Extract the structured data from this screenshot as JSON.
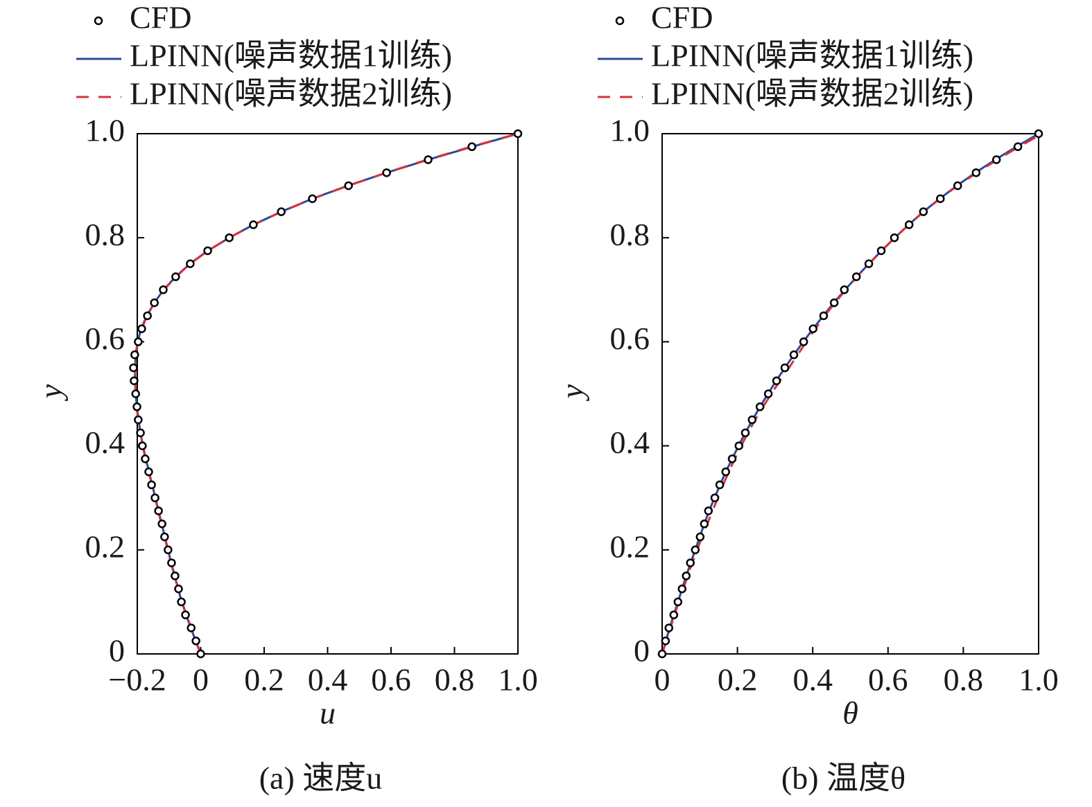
{
  "chart_data": [
    {
      "type": "line",
      "caption": "(a) 速度u",
      "xlabel": "u",
      "ylabel": "y",
      "xlim": [
        -0.2,
        1
      ],
      "ylim": [
        0,
        1
      ],
      "xticks": [
        {
          "value": -0.2,
          "label": "−0.2"
        },
        0,
        0.2,
        0.4,
        0.6,
        0.8,
        {
          "value": 1,
          "label": "1.0"
        }
      ],
      "yticks": [
        0,
        0.2,
        0.4,
        0.6,
        0.8,
        {
          "value": 1,
          "label": "1.0"
        }
      ],
      "y": [
        0,
        0.025,
        0.05,
        0.075,
        0.1,
        0.125,
        0.15,
        0.175,
        0.2,
        0.225,
        0.25,
        0.275,
        0.3,
        0.325,
        0.35,
        0.375,
        0.4,
        0.425,
        0.45,
        0.475,
        0.5,
        0.525,
        0.55,
        0.575,
        0.6,
        0.625,
        0.65,
        0.675,
        0.7,
        0.725,
        0.75,
        0.775,
        0.8,
        0.825,
        0.85,
        0.875,
        0.9,
        0.925,
        0.95,
        0.975,
        1
      ],
      "series": [
        {
          "name": "CFD",
          "color": "#000000",
          "style": "marker",
          "x": [
            0,
            -0.015,
            -0.03,
            -0.048,
            -0.061,
            -0.07,
            -0.081,
            -0.092,
            -0.103,
            -0.114,
            -0.122,
            -0.133,
            -0.144,
            -0.155,
            -0.164,
            -0.175,
            -0.184,
            -0.19,
            -0.197,
            -0.201,
            -0.205,
            -0.21,
            -0.212,
            -0.208,
            -0.197,
            -0.186,
            -0.168,
            -0.146,
            -0.118,
            -0.079,
            -0.033,
            0.022,
            0.09,
            0.166,
            0.254,
            0.352,
            0.466,
            0.586,
            0.717,
            0.855,
            1
          ]
        },
        {
          "name": "LPINN(噪声数据1训练)",
          "color": "#2b4a9c",
          "style": "solid",
          "x": [
            0,
            -0.016,
            -0.031,
            -0.046,
            -0.06,
            -0.071,
            -0.082,
            -0.093,
            -0.103,
            -0.113,
            -0.123,
            -0.133,
            -0.143,
            -0.153,
            -0.163,
            -0.173,
            -0.182,
            -0.19,
            -0.196,
            -0.201,
            -0.205,
            -0.207,
            -0.207,
            -0.205,
            -0.199,
            -0.188,
            -0.17,
            -0.146,
            -0.117,
            -0.079,
            -0.034,
            0.022,
            0.09,
            0.166,
            0.254,
            0.352,
            0.464,
            0.586,
            0.717,
            0.856,
            1
          ]
        },
        {
          "name": "LPINN(噪声数据2训练)",
          "color": "#d9303a",
          "style": "dashed",
          "x": [
            0,
            -0.015,
            -0.03,
            -0.045,
            -0.059,
            -0.071,
            -0.083,
            -0.094,
            -0.104,
            -0.114,
            -0.124,
            -0.134,
            -0.144,
            -0.154,
            -0.164,
            -0.174,
            -0.183,
            -0.19,
            -0.197,
            -0.202,
            -0.205,
            -0.207,
            -0.207,
            -0.204,
            -0.198,
            -0.186,
            -0.169,
            -0.146,
            -0.116,
            -0.078,
            -0.033,
            0.023,
            0.09,
            0.167,
            0.255,
            0.353,
            0.465,
            0.585,
            0.714,
            0.852,
            1
          ]
        }
      ]
    },
    {
      "type": "line",
      "caption": "(b) 温度θ",
      "xlabel": "θ",
      "ylabel": "y",
      "xlim": [
        0,
        1
      ],
      "ylim": [
        0,
        1
      ],
      "xticks": [
        0,
        0.2,
        0.4,
        0.6,
        0.8,
        {
          "value": 1,
          "label": "1.0"
        }
      ],
      "yticks": [
        0,
        0.2,
        0.4,
        0.6,
        0.8,
        {
          "value": 1,
          "label": "1.0"
        }
      ],
      "y": [
        0,
        0.025,
        0.05,
        0.075,
        0.1,
        0.125,
        0.15,
        0.175,
        0.2,
        0.225,
        0.25,
        0.275,
        0.3,
        0.325,
        0.35,
        0.375,
        0.4,
        0.425,
        0.45,
        0.475,
        0.5,
        0.525,
        0.55,
        0.575,
        0.6,
        0.625,
        0.65,
        0.675,
        0.7,
        0.725,
        0.75,
        0.775,
        0.8,
        0.825,
        0.85,
        0.875,
        0.9,
        0.925,
        0.95,
        0.975,
        1
      ],
      "series": [
        {
          "name": "CFD",
          "color": "#000000",
          "style": "marker",
          "x": [
            0,
            0.009,
            0.018,
            0.031,
            0.042,
            0.053,
            0.064,
            0.075,
            0.088,
            0.101,
            0.112,
            0.123,
            0.14,
            0.153,
            0.169,
            0.186,
            0.204,
            0.221,
            0.239,
            0.26,
            0.282,
            0.304,
            0.326,
            0.35,
            0.376,
            0.401,
            0.429,
            0.457,
            0.484,
            0.516,
            0.549,
            0.582,
            0.617,
            0.656,
            0.694,
            0.739,
            0.785,
            0.834,
            0.888,
            0.945,
            1
          ]
        },
        {
          "name": "LPINN(噪声数据1训练)",
          "color": "#2b4a9c",
          "style": "solid",
          "x": [
            0,
            0.01,
            0.02,
            0.031,
            0.042,
            0.053,
            0.064,
            0.076,
            0.088,
            0.1,
            0.112,
            0.125,
            0.139,
            0.154,
            0.169,
            0.186,
            0.203,
            0.221,
            0.24,
            0.26,
            0.281,
            0.303,
            0.326,
            0.35,
            0.375,
            0.401,
            0.428,
            0.456,
            0.486,
            0.517,
            0.549,
            0.583,
            0.618,
            0.655,
            0.694,
            0.737,
            0.783,
            0.832,
            0.885,
            0.941,
            1
          ]
        },
        {
          "name": "LPINN(噪声数据2训练)",
          "color": "#d9303a",
          "style": "dashed",
          "x": [
            0,
            0.011,
            0.022,
            0.033,
            0.044,
            0.056,
            0.068,
            0.08,
            0.093,
            0.106,
            0.12,
            0.134,
            0.148,
            0.162,
            0.177,
            0.193,
            0.21,
            0.228,
            0.247,
            0.268,
            0.29,
            0.313,
            0.337,
            0.36,
            0.383,
            0.407,
            0.432,
            0.459,
            0.488,
            0.518,
            0.55,
            0.583,
            0.618,
            0.655,
            0.695,
            0.738,
            0.785,
            0.836,
            0.89,
            0.948,
            1.01
          ]
        }
      ]
    }
  ]
}
